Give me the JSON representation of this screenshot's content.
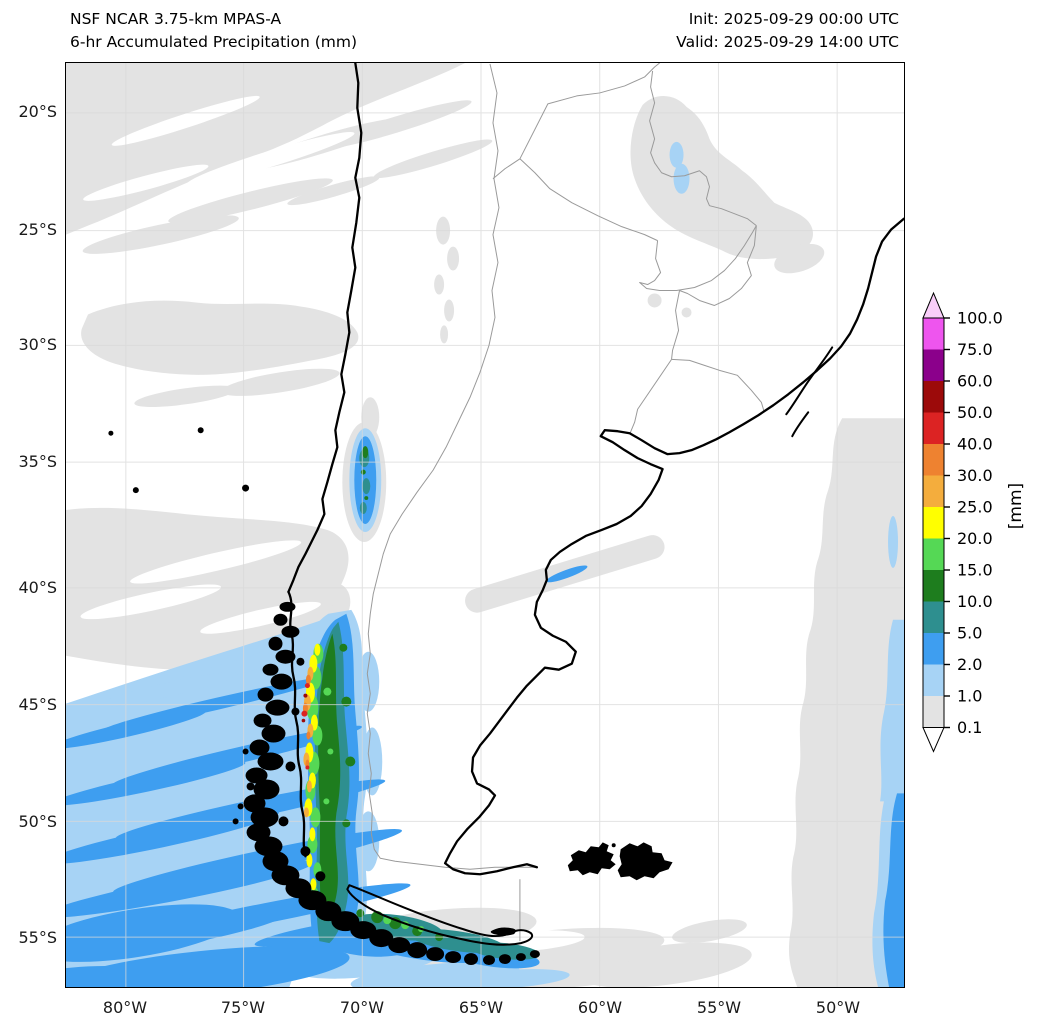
{
  "title": {
    "line1": "NSF NCAR 3.75-km MPAS-A",
    "line2": "6-hr Accumulated Precipitation (mm)"
  },
  "run_info": {
    "init": "Init: 2025-09-29 00:00 UTC",
    "valid": "Valid: 2025-09-29 14:00 UTC"
  },
  "axes": {
    "lat_ticks": [
      "20°S",
      "25°S",
      "30°S",
      "35°S",
      "40°S",
      "45°S",
      "50°S",
      "55°S"
    ],
    "lon_ticks": [
      "80°W",
      "75°W",
      "70°W",
      "65°W",
      "60°W",
      "55°W",
      "50°W"
    ]
  },
  "colorbar": {
    "unit": "[mm]",
    "tick_labels": [
      "100.0",
      "75.0",
      "60.0",
      "50.0",
      "40.0",
      "30.0",
      "25.0",
      "20.0",
      "15.0",
      "10.0",
      "5.0",
      "2.0",
      "1.0",
      "0.1"
    ],
    "colors_top_to_bottom": [
      "#ee55ee",
      "#8b008b",
      "#9c0a0a",
      "#dc2323",
      "#ee8230",
      "#f4ad3d",
      "#ffff00",
      "#55d855",
      "#1e7d1e",
      "#2e8f8f",
      "#3e9ef0",
      "#a7d3f5",
      "#e3e3e3"
    ],
    "over_color": "#f9cef9",
    "under_color": "#ffffff"
  },
  "map_style": {
    "coastline": "#000000",
    "borders": "#9a9a9a",
    "gridlines": "#d9d9d9",
    "background": "#ffffff",
    "frame": "#000000"
  },
  "chart_data": {
    "type": "heatmap",
    "title": "NSF NCAR 3.75-km MPAS-A 6-hr Accumulated Precipitation (mm)",
    "init_time": "2025-09-29 00:00 UTC",
    "valid_time": "2025-09-29 14:00 UTC",
    "units": "mm",
    "region": "Southern South America (approx. 18°S-57°S, 82°W-47°W)",
    "x_ticks": [
      "80°W",
      "75°W",
      "70°W",
      "65°W",
      "60°W",
      "55°W",
      "50°W"
    ],
    "y_ticks": [
      "20°S",
      "25°S",
      "30°S",
      "35°S",
      "40°S",
      "45°S",
      "50°S",
      "55°S"
    ],
    "levels_mm": [
      0.1,
      1.0,
      2.0,
      5.0,
      10.0,
      15.0,
      20.0,
      25.0,
      30.0,
      40.0,
      50.0,
      60.0,
      75.0,
      100.0
    ],
    "legend_position": "right",
    "notable_features": [
      "Intense orographic precipitation band (5-60 mm) along the Patagonian Andes from ~41°S to ~56°S with embedded 20-50 mm cores",
      "Widespread 1-5 mm wind-streaked precipitation bands over the southeast Pacific southwest of Patagonia",
      "Isolated 2-10 mm cell over the Andes near 35°S, 70.5°W",
      "Small 1-2 mm patch over the Paraguay/Bolivia border region near 23°S, 62°W",
      "Light 0.1-1 mm areas over the northern Pacific sector and western Atlantic with a 1-5 mm band at the far eastern edge",
      "Light precipitation trace crossing the Argentine coast near 40°S"
    ]
  }
}
